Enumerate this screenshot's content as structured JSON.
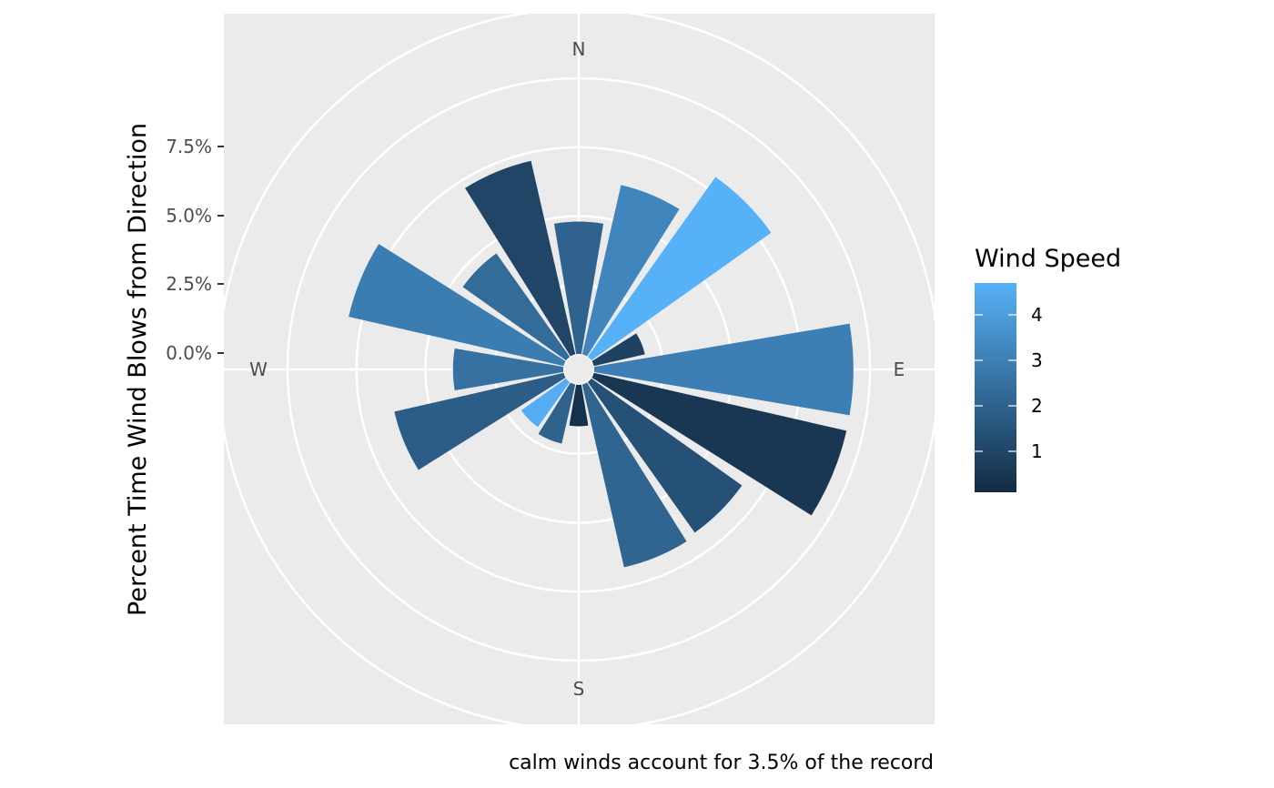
{
  "chart_data": {
    "type": "bar",
    "subtype": "wind-rose",
    "ylabel": "Percent Time Wind Blows from Direction",
    "yticks": [
      "0.0%",
      "2.5%",
      "5.0%",
      "7.5%"
    ],
    "directions": [
      "N",
      "E",
      "S",
      "W"
    ],
    "caption": "calm winds account for 3.5% of the record",
    "legend": {
      "title": "Wind Speed",
      "labels": [
        "4",
        "3",
        "2",
        "1"
      ],
      "tick_values": [
        4,
        3,
        2,
        1
      ],
      "min": 0.1,
      "max": 4.7,
      "low_color": "#132b43",
      "high_color": "#56b1f7"
    },
    "categories": [
      0,
      22.5,
      45,
      67.5,
      90,
      112.5,
      135,
      157.5,
      180,
      202.5,
      225,
      247.5,
      270,
      292.5,
      315,
      337.5
    ],
    "values": [
      4.8,
      6.3,
      8.0,
      1.9,
      9.4,
      9.4,
      6.7,
      6.8,
      1.5,
      2.2,
      2.0,
      6.3,
      4.0,
      8.0,
      4.6,
      7.2
    ],
    "wind_speed": [
      2.0,
      3.2,
      4.7,
      0.9,
      3.0,
      0.5,
      1.4,
      2.1,
      0.3,
      2.0,
      4.6,
      1.8,
      2.5,
      2.9,
      2.3,
      1.0
    ]
  }
}
